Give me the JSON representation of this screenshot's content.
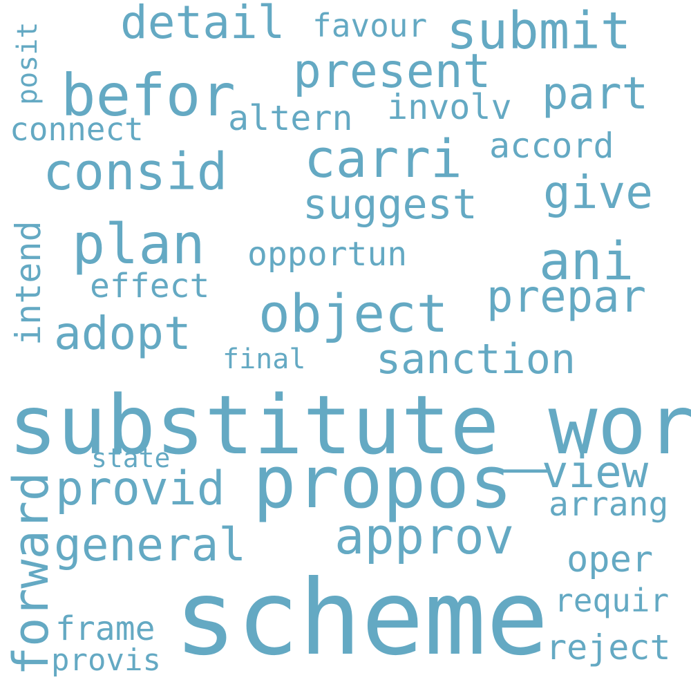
{
  "word_color": "#64a9c3",
  "background": "#ffffff",
  "words": [
    {
      "id": "word-substitute-word",
      "text": "substitute_word"
    },
    {
      "id": "word-scheme",
      "text": "scheme"
    },
    {
      "id": "word-propos",
      "text": "propos"
    },
    {
      "id": "word-befor",
      "text": "befor"
    },
    {
      "id": "word-submit",
      "text": "submit"
    },
    {
      "id": "word-consid",
      "text": "consid"
    },
    {
      "id": "word-carri",
      "text": "carri"
    },
    {
      "id": "word-object",
      "text": "object"
    },
    {
      "id": "word-plan",
      "text": "plan"
    },
    {
      "id": "word-ani",
      "text": "ani"
    },
    {
      "id": "word-approv",
      "text": "approv"
    },
    {
      "id": "word-present",
      "text": "present"
    },
    {
      "id": "word-detail",
      "text": "detail"
    },
    {
      "id": "word-provid",
      "text": "provid"
    },
    {
      "id": "word-forward",
      "text": "forward"
    },
    {
      "id": "word-adopt",
      "text": "adopt"
    },
    {
      "id": "word-prepar",
      "text": "prepar"
    },
    {
      "id": "word-general",
      "text": "general"
    },
    {
      "id": "word-suggest",
      "text": "suggest"
    },
    {
      "id": "word-part",
      "text": "part"
    },
    {
      "id": "word-sanction",
      "text": "sanction"
    },
    {
      "id": "word-give",
      "text": "give"
    },
    {
      "id": "word-view",
      "text": "view"
    },
    {
      "id": "word-involv",
      "text": "involv"
    },
    {
      "id": "word-altern",
      "text": "altern"
    },
    {
      "id": "word-connect",
      "text": "connect"
    },
    {
      "id": "word-opportun",
      "text": "opportun"
    },
    {
      "id": "word-effect",
      "text": "effect"
    },
    {
      "id": "word-accord",
      "text": "accord"
    },
    {
      "id": "word-intend",
      "text": "intend"
    },
    {
      "id": "word-favour",
      "text": "favour"
    },
    {
      "id": "word-oper",
      "text": "oper"
    },
    {
      "id": "word-arrang",
      "text": "arrang"
    },
    {
      "id": "word-requir",
      "text": "requir"
    },
    {
      "id": "word-reject",
      "text": "reject"
    },
    {
      "id": "word-frame",
      "text": "frame"
    },
    {
      "id": "word-provis",
      "text": "provis"
    },
    {
      "id": "word-final",
      "text": "final"
    },
    {
      "id": "word-state",
      "text": "state"
    },
    {
      "id": "word-posit",
      "text": "posit"
    }
  ]
}
